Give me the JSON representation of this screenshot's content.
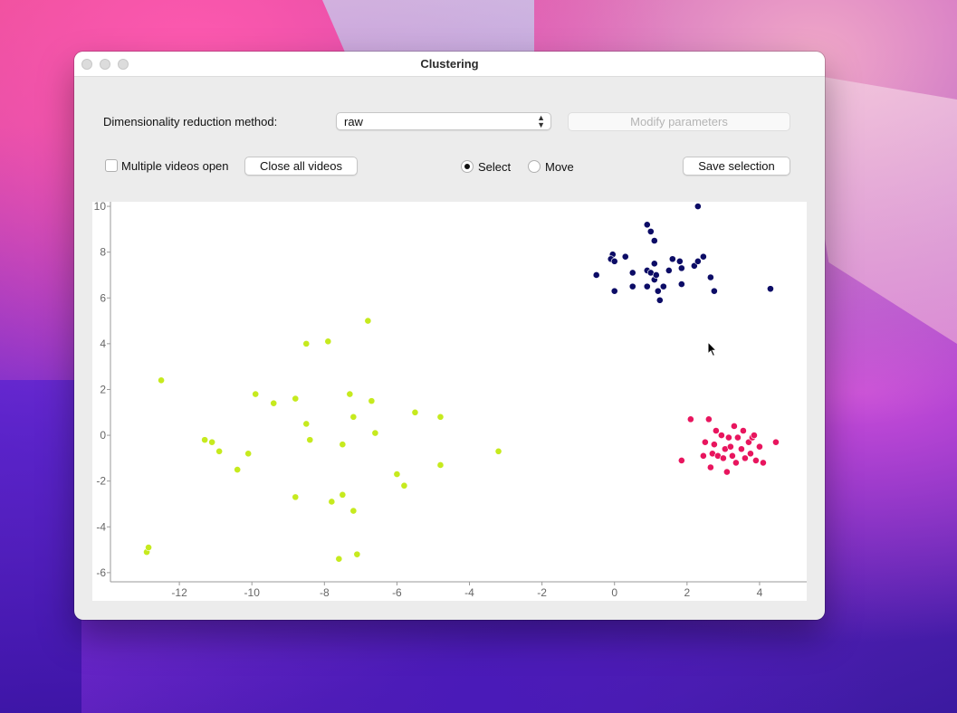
{
  "window": {
    "title": "Clustering"
  },
  "controls": {
    "method_label": "Dimensionality reduction method:",
    "method_value": "raw",
    "modify_params_label": "Modify parameters",
    "multiple_videos_label": "Multiple videos open",
    "multiple_videos_checked": false,
    "close_all_label": "Close all videos",
    "select_label": "Select",
    "move_label": "Move",
    "mode_selected": "Select",
    "save_selection_label": "Save selection"
  },
  "chart_data": {
    "type": "scatter",
    "xlim": [
      -13.9,
      5.3
    ],
    "ylim": [
      -6.4,
      10.2
    ],
    "x_ticks": [
      -12,
      -10,
      -8,
      -6,
      -4,
      -2,
      0,
      2,
      4
    ],
    "y_ticks": [
      10,
      8,
      6,
      4,
      2,
      0,
      -2,
      -4,
      -6
    ],
    "grid": false,
    "series": [
      {
        "color": "#c6ea1e",
        "points": [
          [
            -12.5,
            2.4
          ],
          [
            -11.3,
            -0.2
          ],
          [
            -11.1,
            -0.3
          ],
          [
            -10.9,
            -0.7
          ],
          [
            -10.4,
            -1.5
          ],
          [
            -10.1,
            -0.8
          ],
          [
            -9.9,
            1.8
          ],
          [
            -9.4,
            1.4
          ],
          [
            -8.8,
            1.6
          ],
          [
            -8.5,
            0.5
          ],
          [
            -8.4,
            -0.2
          ],
          [
            -8.5,
            4.0
          ],
          [
            -7.9,
            4.1
          ],
          [
            -6.8,
            5.0
          ],
          [
            -7.3,
            1.8
          ],
          [
            -7.2,
            0.8
          ],
          [
            -7.5,
            -0.4
          ],
          [
            -6.7,
            1.5
          ],
          [
            -6.6,
            0.1
          ],
          [
            -5.5,
            1.0
          ],
          [
            -4.8,
            0.8
          ],
          [
            -6.0,
            -1.7
          ],
          [
            -5.8,
            -2.2
          ],
          [
            -4.8,
            -1.3
          ],
          [
            -3.2,
            -0.7
          ],
          [
            -8.8,
            -2.7
          ],
          [
            -7.8,
            -2.9
          ],
          [
            -7.5,
            -2.6
          ],
          [
            -7.2,
            -3.3
          ],
          [
            -7.6,
            -5.4
          ],
          [
            -7.1,
            -5.2
          ],
          [
            -12.9,
            -5.1
          ],
          [
            -12.85,
            -4.9
          ]
        ]
      },
      {
        "color": "#0c0c66",
        "points": [
          [
            2.3,
            10.0
          ],
          [
            0.9,
            9.2
          ],
          [
            1.0,
            8.9
          ],
          [
            1.1,
            8.5
          ],
          [
            -0.05,
            7.9
          ],
          [
            -0.1,
            7.7
          ],
          [
            0.0,
            7.6
          ],
          [
            0.3,
            7.8
          ],
          [
            -0.5,
            7.0
          ],
          [
            0.0,
            6.3
          ],
          [
            0.5,
            7.1
          ],
          [
            0.5,
            6.5
          ],
          [
            0.9,
            6.5
          ],
          [
            0.9,
            7.2
          ],
          [
            1.0,
            7.1
          ],
          [
            1.1,
            6.8
          ],
          [
            1.15,
            7.0
          ],
          [
            1.1,
            7.5
          ],
          [
            1.2,
            6.3
          ],
          [
            1.35,
            6.5
          ],
          [
            1.25,
            5.9
          ],
          [
            1.5,
            7.2
          ],
          [
            1.6,
            7.7
          ],
          [
            1.8,
            7.6
          ],
          [
            1.85,
            7.3
          ],
          [
            1.85,
            6.6
          ],
          [
            2.2,
            7.4
          ],
          [
            2.3,
            7.6
          ],
          [
            2.45,
            7.8
          ],
          [
            2.65,
            6.9
          ],
          [
            2.75,
            6.3
          ],
          [
            4.3,
            6.4
          ]
        ]
      },
      {
        "color": "#e8155e",
        "points": [
          [
            2.1,
            0.7
          ],
          [
            2.6,
            0.7
          ],
          [
            1.85,
            -1.1
          ],
          [
            2.45,
            -0.9
          ],
          [
            2.5,
            -0.3
          ],
          [
            2.65,
            -1.4
          ],
          [
            2.7,
            -0.8
          ],
          [
            2.75,
            -0.4
          ],
          [
            2.8,
            0.2
          ],
          [
            2.85,
            -0.9
          ],
          [
            2.95,
            0.0
          ],
          [
            3.0,
            -1.0
          ],
          [
            3.05,
            -0.6
          ],
          [
            3.1,
            -1.6
          ],
          [
            3.15,
            -0.1
          ],
          [
            3.2,
            -0.5
          ],
          [
            3.25,
            -0.9
          ],
          [
            3.3,
            0.4
          ],
          [
            3.35,
            -1.2
          ],
          [
            3.4,
            -0.1
          ],
          [
            3.5,
            -0.6
          ],
          [
            3.55,
            0.2
          ],
          [
            3.6,
            -1.0
          ],
          [
            3.7,
            -0.3
          ],
          [
            3.75,
            -0.8
          ],
          [
            3.8,
            -0.1
          ],
          [
            3.85,
            0.0
          ],
          [
            3.9,
            -1.1
          ],
          [
            4.0,
            -0.5
          ],
          [
            4.1,
            -1.2
          ],
          [
            4.45,
            -0.3
          ]
        ]
      }
    ]
  }
}
